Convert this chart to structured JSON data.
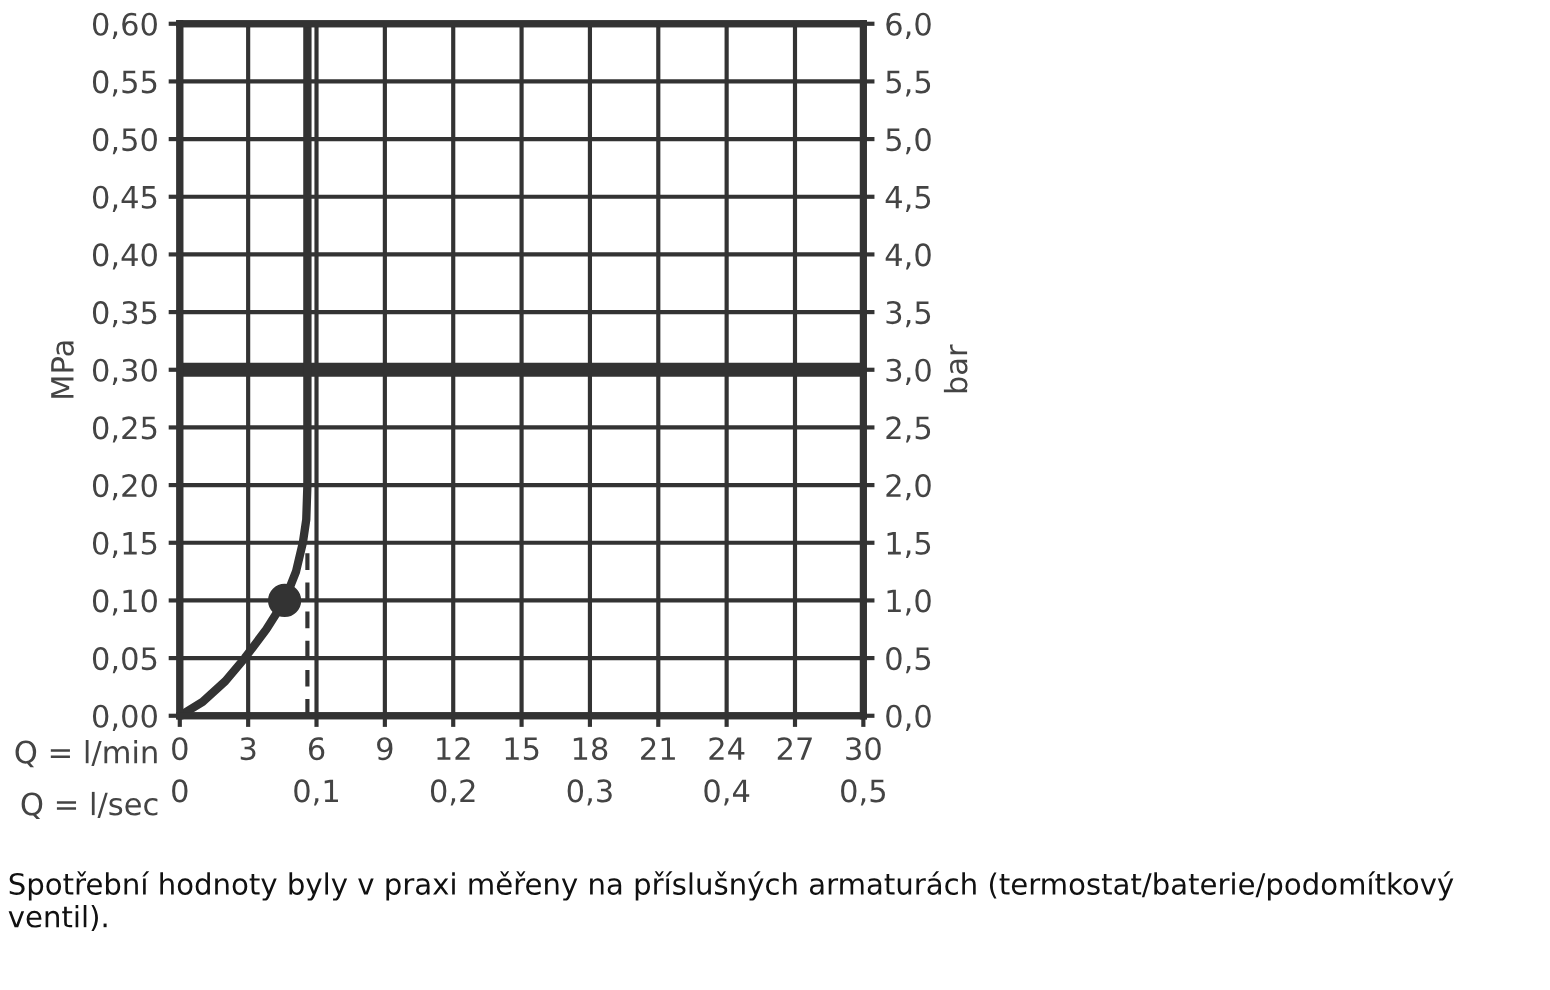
{
  "chart_data": {
    "type": "line",
    "ylabel": "MPa",
    "y2label": "bar",
    "xlabel": "Q = l/min",
    "x2label": "Q = l/sec",
    "series": [
      {
        "color": "#333333",
        "line_style": "solid",
        "x": [
          0,
          1,
          2,
          2.85,
          3.8,
          4.6,
          5.1,
          5.4,
          5.55,
          5.6,
          5.6
        ],
        "values": [
          0,
          0.012,
          0.03,
          0.05,
          0.075,
          0.1,
          0.125,
          0.15,
          0.17,
          0.2,
          0.6
        ]
      },
      {
        "type": "line",
        "color": "#333333",
        "line_style": "dashed",
        "x": [
          5.6,
          5.6
        ],
        "values": [
          0,
          0.15
        ]
      },
      {
        "type": "scatter",
        "color": "#333333",
        "marker": "circle",
        "x": [
          4.6
        ],
        "values": [
          0.1
        ]
      }
    ],
    "xlim": [
      0,
      30
    ],
    "xticks": [
      0,
      3,
      6,
      9,
      12,
      15,
      18,
      21,
      24,
      27,
      30
    ],
    "x2lim": [
      0,
      0.5
    ],
    "x2ticks": [
      0,
      {
        "value": 0.1,
        "label": "0,1"
      },
      {
        "value": 0.2,
        "label": "0,2"
      },
      {
        "value": 0.3,
        "label": "0,3"
      },
      {
        "value": 0.4,
        "label": "0,4"
      },
      {
        "value": 0.5,
        "label": "0,5"
      }
    ],
    "ylim": [
      0,
      0.6
    ],
    "yticks": [
      {
        "value": 0,
        "label": "0,00"
      },
      {
        "value": 0.05,
        "label": "0,05"
      },
      {
        "value": 0.1,
        "label": "0,10"
      },
      {
        "value": 0.15,
        "label": "0,15"
      },
      {
        "value": 0.2,
        "label": "0,20"
      },
      {
        "value": 0.25,
        "label": "0,25"
      },
      {
        "value": 0.3,
        "label": "0,30"
      },
      {
        "value": 0.35,
        "label": "0,35"
      },
      {
        "value": 0.4,
        "label": "0,40"
      },
      {
        "value": 0.45,
        "label": "0,45"
      },
      {
        "value": 0.5,
        "label": "0,50"
      },
      {
        "value": 0.55,
        "label": "0,55"
      },
      {
        "value": 0.6,
        "label": "0,60"
      }
    ],
    "y2lim": [
      0,
      6
    ],
    "y2ticks": [
      {
        "value": 0,
        "label": "0,0"
      },
      {
        "value": 0.5,
        "label": "0,5"
      },
      {
        "value": 1,
        "label": "1,0"
      },
      {
        "value": 1.5,
        "label": "1,5"
      },
      {
        "value": 2,
        "label": "2,0"
      },
      {
        "value": 2.5,
        "label": "2,5"
      },
      {
        "value": 3,
        "label": "3,0"
      },
      {
        "value": 3.5,
        "label": "3,5"
      },
      {
        "value": 4,
        "label": "4,0"
      },
      {
        "value": 4.5,
        "label": "4,5"
      },
      {
        "value": 5,
        "label": "5,0"
      },
      {
        "value": 5.5,
        "label": "5,5"
      },
      {
        "value": 6,
        "label": "6,0"
      }
    ],
    "ref_lines": [
      {
        "axis": "y",
        "value": 0.3,
        "color": "#333333",
        "line_style": "solid"
      }
    ],
    "grid": true,
    "annotations": [
      "Spotřební hodnoty byly v praxi měřeny na příslušných armaturách (termostat/baterie/podomítkový ventil)."
    ]
  }
}
